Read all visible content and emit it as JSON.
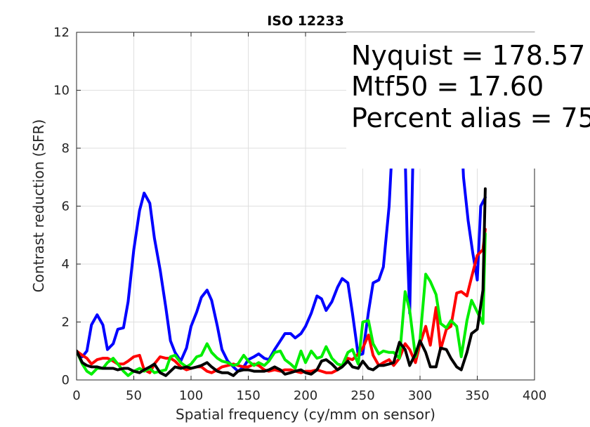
{
  "chart_data": {
    "type": "line",
    "title": "ISO 12233",
    "xlabel": "Spatial frequency (cy/mm on sensor)",
    "ylabel": "Contrast reduction (SFR)",
    "xlim": [
      0,
      400
    ],
    "ylim": [
      0,
      12
    ],
    "xticks": [
      "0",
      "50",
      "100",
      "150",
      "200",
      "250",
      "300",
      "350",
      "400"
    ],
    "yticks": [
      "0",
      "2",
      "4",
      "6",
      "8",
      "10",
      "12"
    ],
    "grid": true,
    "annotations": [
      "Nyquist = 178.57",
      "Mtf50 = 17.60",
      "Percent alias = 75"
    ],
    "series": [
      {
        "color": "#0000ff",
        "x": [
          0,
          5,
          9,
          13,
          18,
          23,
          27,
          32,
          36,
          41,
          45,
          50,
          55,
          59,
          64,
          68,
          73,
          78,
          82,
          86,
          91,
          96,
          100,
          105,
          109,
          114,
          118,
          123,
          127,
          132,
          137,
          141,
          146,
          150,
          155,
          159,
          164,
          168,
          173,
          178,
          182,
          187,
          191,
          196,
          200,
          205,
          210,
          214,
          218,
          223,
          228,
          232,
          237,
          241,
          246,
          250,
          255,
          259,
          264,
          268,
          273,
          276,
          279,
          282,
          285,
          287,
          289,
          291,
          294,
          297,
          300,
          303,
          306,
          309,
          312,
          316,
          320,
          324,
          328,
          332,
          335,
          338,
          342,
          346,
          350,
          353,
          357
        ],
        "y": [
          1.0,
          0.8,
          1.0,
          1.9,
          2.25,
          1.9,
          1.05,
          1.25,
          1.75,
          1.8,
          2.7,
          4.5,
          5.85,
          6.45,
          6.1,
          4.9,
          3.8,
          2.5,
          1.35,
          0.95,
          0.65,
          1.1,
          1.85,
          2.35,
          2.85,
          3.1,
          2.75,
          1.85,
          1.05,
          0.65,
          0.45,
          0.3,
          0.45,
          0.7,
          0.8,
          0.9,
          0.75,
          0.7,
          1.05,
          1.35,
          1.6,
          1.6,
          1.45,
          1.6,
          1.85,
          2.3,
          2.9,
          2.8,
          2.4,
          2.7,
          3.2,
          3.5,
          3.35,
          2.3,
          0.85,
          0.9,
          2.35,
          3.35,
          3.45,
          3.9,
          6.0,
          8.3,
          12.0,
          12.0,
          9.5,
          7.8,
          4.5,
          2.3,
          8.0,
          12.0,
          12.0,
          12.0,
          12.0,
          12.0,
          12.0,
          12.0,
          12.0,
          12.0,
          12.0,
          12.0,
          9.5,
          7.0,
          5.5,
          4.4,
          3.45,
          6.0,
          6.3
        ]
      },
      {
        "color": "#ff0000",
        "x": [
          0,
          5,
          9,
          13,
          18,
          23,
          27,
          32,
          36,
          41,
          45,
          50,
          55,
          59,
          64,
          68,
          73,
          78,
          82,
          86,
          91,
          96,
          100,
          105,
          109,
          114,
          118,
          123,
          127,
          132,
          137,
          141,
          146,
          150,
          155,
          159,
          164,
          168,
          173,
          178,
          182,
          187,
          191,
          196,
          200,
          205,
          210,
          214,
          218,
          223,
          228,
          232,
          237,
          241,
          246,
          250,
          255,
          259,
          264,
          268,
          273,
          277,
          282,
          287,
          291,
          296,
          300,
          305,
          309,
          314,
          318,
          323,
          327,
          332,
          336,
          341,
          345,
          350,
          355,
          357
        ],
        "y": [
          1.0,
          0.85,
          0.75,
          0.55,
          0.7,
          0.75,
          0.75,
          0.65,
          0.55,
          0.55,
          0.65,
          0.8,
          0.85,
          0.35,
          0.25,
          0.55,
          0.8,
          0.75,
          0.75,
          0.65,
          0.45,
          0.35,
          0.4,
          0.45,
          0.45,
          0.3,
          0.25,
          0.35,
          0.45,
          0.5,
          0.55,
          0.5,
          0.45,
          0.45,
          0.55,
          0.5,
          0.35,
          0.3,
          0.35,
          0.3,
          0.35,
          0.35,
          0.3,
          0.25,
          0.3,
          0.3,
          0.35,
          0.3,
          0.25,
          0.25,
          0.35,
          0.5,
          0.75,
          0.7,
          0.9,
          1.1,
          1.55,
          0.85,
          0.5,
          0.6,
          0.7,
          0.5,
          0.75,
          1.25,
          1.05,
          0.6,
          1.25,
          1.85,
          1.2,
          2.5,
          1.05,
          1.75,
          1.85,
          3.0,
          3.05,
          2.9,
          3.55,
          4.3,
          4.5,
          5.2
        ]
      },
      {
        "color": "#00ee00",
        "x": [
          0,
          5,
          9,
          13,
          18,
          23,
          27,
          32,
          36,
          41,
          45,
          50,
          55,
          59,
          64,
          68,
          73,
          78,
          82,
          86,
          91,
          96,
          100,
          105,
          109,
          114,
          118,
          123,
          127,
          132,
          137,
          141,
          146,
          150,
          155,
          159,
          164,
          168,
          173,
          178,
          182,
          187,
          191,
          196,
          200,
          205,
          210,
          214,
          218,
          223,
          228,
          232,
          237,
          241,
          246,
          250,
          255,
          259,
          264,
          268,
          273,
          277,
          282,
          287,
          291,
          296,
          300,
          305,
          309,
          314,
          318,
          323,
          327,
          332,
          336,
          341,
          345,
          350,
          355,
          357
        ],
        "y": [
          1.0,
          0.55,
          0.3,
          0.2,
          0.4,
          0.4,
          0.6,
          0.75,
          0.55,
          0.3,
          0.15,
          0.3,
          0.4,
          0.3,
          0.4,
          0.25,
          0.3,
          0.35,
          0.8,
          0.85,
          0.6,
          0.45,
          0.55,
          0.8,
          0.85,
          1.25,
          0.95,
          0.75,
          0.65,
          0.6,
          0.5,
          0.55,
          0.85,
          0.65,
          0.5,
          0.6,
          0.5,
          0.65,
          0.95,
          1.0,
          0.7,
          0.55,
          0.4,
          1.0,
          0.6,
          1.0,
          0.75,
          0.8,
          1.15,
          0.75,
          0.55,
          0.5,
          0.95,
          1.05,
          0.55,
          2.0,
          2.05,
          1.25,
          0.9,
          1.0,
          0.95,
          0.95,
          0.75,
          3.05,
          2.4,
          0.8,
          1.4,
          3.65,
          3.4,
          2.95,
          1.95,
          1.8,
          2.05,
          1.85,
          0.8,
          2.05,
          2.75,
          2.35,
          1.95,
          5.05
        ]
      },
      {
        "color": "#000000",
        "x": [
          0,
          5,
          9,
          13,
          18,
          23,
          27,
          32,
          36,
          41,
          45,
          50,
          55,
          59,
          64,
          68,
          73,
          78,
          82,
          86,
          91,
          96,
          100,
          105,
          109,
          114,
          118,
          123,
          127,
          132,
          137,
          141,
          146,
          150,
          155,
          159,
          164,
          168,
          173,
          178,
          182,
          187,
          191,
          196,
          200,
          205,
          210,
          214,
          218,
          223,
          228,
          232,
          237,
          241,
          246,
          250,
          255,
          259,
          264,
          268,
          273,
          277,
          282,
          287,
          291,
          296,
          300,
          305,
          309,
          314,
          318,
          323,
          327,
          332,
          336,
          341,
          345,
          350,
          355,
          357
        ],
        "y": [
          1.0,
          0.6,
          0.5,
          0.45,
          0.45,
          0.4,
          0.4,
          0.4,
          0.35,
          0.4,
          0.4,
          0.3,
          0.25,
          0.35,
          0.45,
          0.55,
          0.25,
          0.15,
          0.3,
          0.45,
          0.4,
          0.45,
          0.4,
          0.45,
          0.5,
          0.6,
          0.45,
          0.3,
          0.25,
          0.25,
          0.15,
          0.3,
          0.35,
          0.35,
          0.3,
          0.3,
          0.3,
          0.35,
          0.45,
          0.35,
          0.2,
          0.25,
          0.3,
          0.35,
          0.25,
          0.2,
          0.35,
          0.65,
          0.7,
          0.55,
          0.35,
          0.45,
          0.65,
          0.45,
          0.4,
          0.65,
          0.4,
          0.35,
          0.5,
          0.5,
          0.55,
          0.6,
          1.3,
          1.05,
          0.5,
          0.9,
          1.35,
          0.95,
          0.45,
          0.45,
          1.1,
          1.05,
          0.75,
          0.45,
          0.35,
          0.95,
          1.6,
          1.75,
          3.1,
          6.6
        ]
      }
    ]
  }
}
